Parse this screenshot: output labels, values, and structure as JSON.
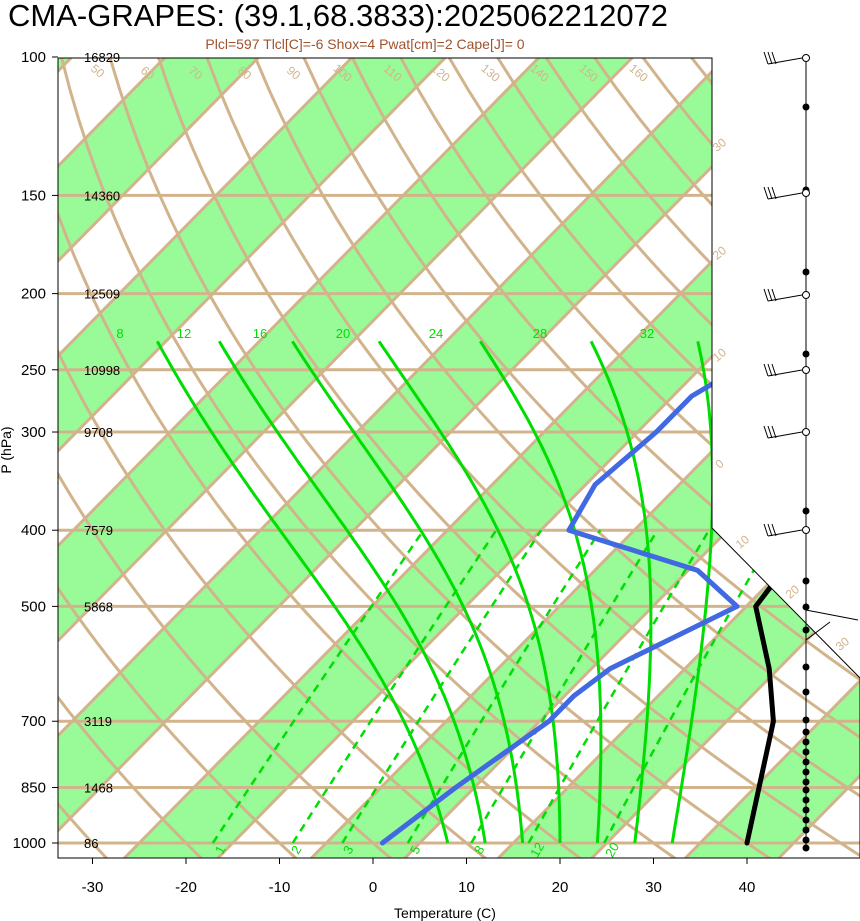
{
  "chart_data": {
    "type": "line",
    "title": "CMA-GRAPES: (39.1,68.3833):2025062212072",
    "subtitle": "Plcl=597 Tlcl[C]=-6 Shox=4 Pwat[cm]=2 Cape[J]= 0",
    "xlabel": "Temperature (C)",
    "ylabel": "P (hPa)",
    "xlim": [
      -33.5,
      37
    ],
    "ylim": [
      1050,
      100
    ],
    "x_ticks": [
      "-30",
      "-20",
      "-10",
      "0",
      "10",
      "20",
      "30",
      "40"
    ],
    "pressure_levels": [
      {
        "p": "100",
        "height": "16829"
      },
      {
        "p": "150",
        "height": "14360"
      },
      {
        "p": "200",
        "height": "12509"
      },
      {
        "p": "250",
        "height": "10998"
      },
      {
        "p": "300",
        "height": "9708"
      },
      {
        "p": "400",
        "height": "7579"
      },
      {
        "p": "500",
        "height": "5868"
      },
      {
        "p": "700",
        "height": "3119"
      },
      {
        "p": "850",
        "height": "1468"
      },
      {
        "p": "1000",
        "height": "86"
      }
    ],
    "temperature_profile": {
      "color": "#000000",
      "points": [
        [
          1000,
          40
        ],
        [
          700,
          30
        ],
        [
          600,
          24
        ],
        [
          500,
          16
        ],
        [
          470,
          15.5
        ],
        [
          400,
          15
        ],
        [
          350,
          14.5
        ],
        [
          300,
          10
        ],
        [
          250,
          5
        ],
        [
          200,
          0
        ],
        [
          150,
          -6
        ],
        [
          130,
          -8
        ],
        [
          115,
          -8
        ],
        [
          100,
          -12
        ]
      ]
    },
    "dewpoint_profile": {
      "color": "#4169e1",
      "points": [
        [
          1000,
          1
        ],
        [
          850,
          3
        ],
        [
          700,
          6
        ],
        [
          650,
          6
        ],
        [
          600,
          7
        ],
        [
          500,
          14
        ],
        [
          450,
          6
        ],
        [
          400,
          -12
        ],
        [
          350,
          -14
        ],
        [
          300,
          -13
        ],
        [
          270,
          -13
        ],
        [
          250,
          -11
        ],
        [
          220,
          -10
        ],
        [
          200,
          -11
        ],
        [
          150,
          -2
        ],
        [
          130,
          -5
        ],
        [
          100,
          -4
        ]
      ]
    },
    "dry_adiabat_labels": [
      "50",
      "60",
      "70",
      "80",
      "90",
      "100",
      "110",
      "120",
      "130",
      "140",
      "150",
      "160",
      "30",
      "20",
      "10",
      "0",
      "10",
      "20",
      "30"
    ],
    "moist_adiabat_labels": [
      "8",
      "12",
      "16",
      "20",
      "24",
      "28",
      "32"
    ],
    "mixing_ratio_labels": [
      "1",
      "2",
      "3",
      "5",
      "8",
      "12",
      "20"
    ],
    "shading": {
      "band_color": "#98fb98",
      "line_color": "#d2b48c",
      "moist_color": "#00dd00"
    }
  }
}
